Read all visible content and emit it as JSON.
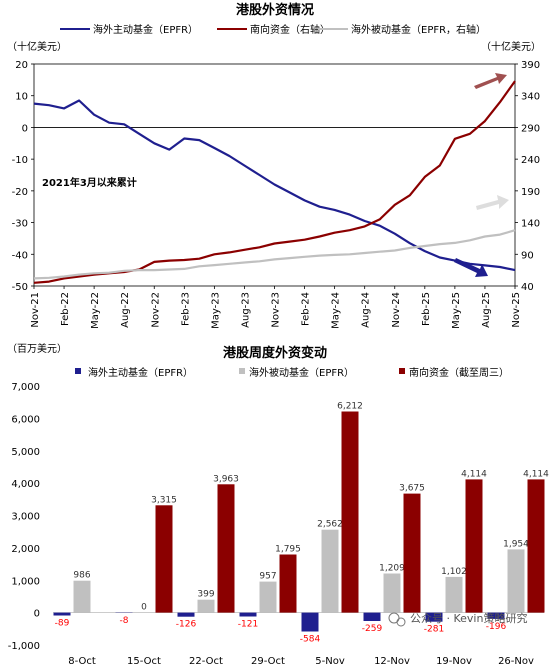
{
  "chart_data": [
    {
      "type": "line",
      "title": "港股外资情况",
      "left_unit": "（十亿美元）",
      "right_unit": "（十亿美元）",
      "annotation": "2021年3月以来累计",
      "colors": {
        "main": "#1f1f8f",
        "south": "#8b0000",
        "passive": "#c0c0c0"
      },
      "x_tick_labels": [
        "Nov-21",
        "Feb-22",
        "May-22",
        "Aug-22",
        "Nov-22",
        "Feb-23",
        "May-23",
        "Aug-23",
        "Nov-23",
        "Feb-24",
        "May-24",
        "Aug-24",
        "Nov-24",
        "Feb-25",
        "May-25",
        "Aug-25",
        "Nov-25"
      ],
      "y_left_ticks": [
        20,
        10,
        0,
        -10,
        -20,
        -30,
        -40,
        -50
      ],
      "y_left_lim": [
        -50,
        20
      ],
      "y_right_ticks": [
        390,
        340,
        290,
        240,
        190,
        140,
        90,
        40
      ],
      "y_right_lim": [
        40,
        390
      ],
      "series": [
        {
          "name": "海外主动基金（EPFR）",
          "axis": "left",
          "key": "main",
          "x": [
            0,
            0.5,
            1,
            1.5,
            2,
            2.5,
            3,
            3.5,
            4,
            4.5,
            5,
            5.5,
            6,
            6.5,
            7,
            7.5,
            8,
            8.5,
            9,
            9.5,
            10,
            10.5,
            11,
            11.5,
            12,
            12.5,
            13,
            13.5,
            14,
            14.5,
            15,
            15.5,
            16
          ],
          "values": [
            7.5,
            7,
            6,
            8.5,
            4,
            1.5,
            1,
            -2,
            -5,
            -7,
            -3.5,
            -4,
            -6.5,
            -9,
            -12,
            -15,
            -18,
            -20.5,
            -23,
            -25,
            -26,
            -27.5,
            -29.5,
            -31,
            -33.5,
            -36.5,
            -39,
            -41,
            -42,
            -43,
            -43.5,
            -44,
            -45
          ]
        },
        {
          "name": "南向资金（右轴）",
          "axis": "right",
          "key": "south",
          "x": [
            0,
            0.5,
            1,
            1.5,
            2,
            2.5,
            3,
            3.5,
            4,
            4.5,
            5,
            5.5,
            6,
            6.5,
            7,
            7.5,
            8,
            8.5,
            9,
            9.5,
            10,
            10.5,
            11,
            11.5,
            12,
            12.5,
            13,
            13.5,
            14,
            14.5,
            15,
            15.5,
            16
          ],
          "values": [
            45,
            47,
            52,
            55,
            58,
            60,
            62,
            66,
            78,
            80,
            81,
            83,
            90,
            93,
            97,
            101,
            107,
            110,
            113,
            118,
            124,
            128,
            134,
            145,
            168,
            183,
            212,
            230,
            272,
            280,
            300,
            330,
            363
          ]
        },
        {
          "name": "海外被动基金（EPFR，右轴）",
          "axis": "right",
          "key": "passive",
          "x": [
            0,
            0.5,
            1,
            1.5,
            2,
            2.5,
            3,
            3.5,
            4,
            4.5,
            5,
            5.5,
            6,
            6.5,
            7,
            7.5,
            8,
            8.5,
            9,
            9.5,
            10,
            10.5,
            11,
            11.5,
            12,
            12.5,
            13,
            13.5,
            14,
            14.5,
            15,
            15.5,
            16
          ],
          "values": [
            52,
            53,
            55,
            58,
            60,
            61,
            64,
            65,
            65,
            66,
            67,
            71,
            73,
            75,
            77,
            79,
            82,
            84,
            86,
            88,
            89,
            90,
            92,
            94,
            96,
            100,
            103,
            106,
            108,
            112,
            118,
            121,
            128
          ]
        }
      ]
    },
    {
      "type": "bar",
      "title": "港股周度外资变动",
      "unit": "（百万美元）",
      "categories": [
        "8-Oct",
        "15-Oct",
        "22-Oct",
        "29-Oct",
        "5-Nov",
        "12-Nov",
        "19-Nov",
        "26-Nov"
      ],
      "y_ticks": [
        "7,000",
        "6,000",
        "5,000",
        "4,000",
        "3,000",
        "2,000",
        "1,000",
        "0",
        "-1,000"
      ],
      "ylim": [
        -1000,
        7000
      ],
      "series": [
        {
          "name": "海外主动基金（EPFR）",
          "color": "#1f1f8f",
          "values": [
            -89,
            -8,
            -126,
            -121,
            -584,
            -259,
            -281,
            -196
          ],
          "labels": [
            "-89",
            "-8",
            "-126",
            "-121",
            "-584",
            "-259",
            "-281",
            "-196"
          ],
          "label_color": "#ff0000"
        },
        {
          "name": "海外被动基金（EPFR）",
          "color": "#c0c0c0",
          "values": [
            986,
            0,
            399,
            957,
            2562,
            1209,
            1102,
            1954
          ],
          "labels": [
            "986",
            "0",
            "399",
            "957",
            "2,562",
            "1,209",
            "1,102",
            "1,954"
          ],
          "label_color": "#333333"
        },
        {
          "name": "南向资金（截至周三）",
          "color": "#8b0000",
          "values": [
            0,
            3315,
            3963,
            1795,
            6212,
            3675,
            4114,
            4114
          ],
          "labels": [
            "",
            "3,315",
            "3,963",
            "1,795",
            "6,212",
            "3,675",
            "4,114",
            "4,114"
          ],
          "label_color": "#333333"
        }
      ]
    }
  ],
  "watermark": "公众号 · Kevin策略研究",
  "watermark_icon": "wechat-icon"
}
